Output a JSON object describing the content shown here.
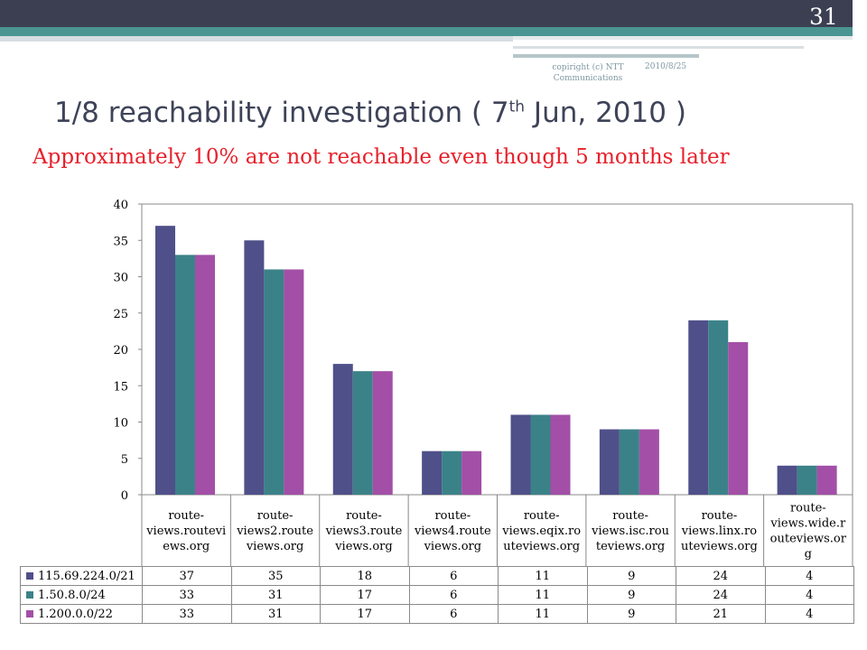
{
  "slide": {
    "page_number": "31",
    "copyright": "copiright (c) NTT Communications",
    "date": "2010/8/25",
    "title_main": "1/8 reachability investigation ( 7",
    "title_sup": "th",
    "title_end": " Jun, 2010 )",
    "subtitle": "Approximately 10% are not reachable even though 5 months later"
  },
  "colors": {
    "series": [
      "#4f5089",
      "#3b8288",
      "#a34fa7"
    ],
    "grid": "#888888",
    "title": "#3e4358",
    "subtitle": "#e8202a"
  },
  "chart_data": {
    "type": "bar",
    "categories": [
      "route-views.routeviews.org",
      "route-views2.routeviews.org",
      "route-views3.routeviews.org",
      "route-views4.routeviews.org",
      "route-views.eqix.routeviews.org",
      "route-views.isc.routeviews.org",
      "route-views.linx.routeviews.org",
      "route-views.wide.routeviews.org"
    ],
    "category_lines": [
      [
        "route-",
        "views.routevi",
        "ews.org"
      ],
      [
        "route-",
        "views2.route",
        "views.org"
      ],
      [
        "route-",
        "views3.route",
        "views.org"
      ],
      [
        "route-",
        "views4.route",
        "views.org"
      ],
      [
        "route-",
        "views.eqix.ro",
        "uteviews.org"
      ],
      [
        "route-",
        "views.isc.rou",
        "teviews.org"
      ],
      [
        "route-",
        "views.linx.ro",
        "uteviews.org"
      ],
      [
        "route-",
        "views.wide.r",
        "outeviews.or",
        "g"
      ]
    ],
    "series": [
      {
        "name": "115.69.224.0/21",
        "values": [
          37,
          35,
          18,
          6,
          11,
          9,
          24,
          4
        ]
      },
      {
        "name": "1.50.8.0/24",
        "values": [
          33,
          31,
          17,
          6,
          11,
          9,
          24,
          4
        ]
      },
      {
        "name": "1.200.0.0/22",
        "values": [
          33,
          31,
          17,
          6,
          11,
          9,
          21,
          4
        ]
      }
    ],
    "ylim": [
      0,
      40
    ],
    "yticks": [
      "0",
      "5",
      "10",
      "15",
      "20",
      "25",
      "30",
      "35",
      "40"
    ],
    "grid": false,
    "legend": "data-table-below"
  }
}
